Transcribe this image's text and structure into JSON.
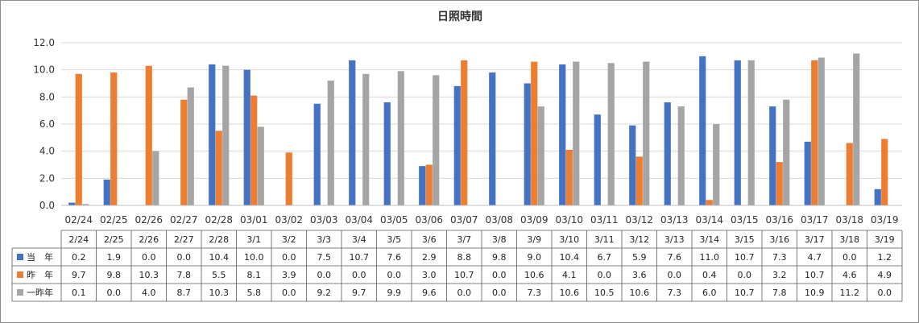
{
  "chart_data": {
    "type": "bar",
    "title": "日照時間",
    "ylim": [
      0,
      12
    ],
    "yticks": [
      "0.0",
      "2.0",
      "4.0",
      "6.0",
      "8.0",
      "10.0",
      "12.0"
    ],
    "categories": [
      "02/24",
      "02/25",
      "02/26",
      "02/27",
      "02/28",
      "03/01",
      "03/02",
      "03/03",
      "03/04",
      "03/05",
      "03/06",
      "03/07",
      "03/08",
      "03/09",
      "03/10",
      "03/11",
      "03/12",
      "03/13",
      "03/14",
      "03/15",
      "03/16",
      "03/17",
      "03/18",
      "03/19"
    ],
    "table_categories": [
      "2/24",
      "2/25",
      "2/26",
      "2/27",
      "2/28",
      "3/1",
      "3/2",
      "3/3",
      "3/4",
      "3/5",
      "3/6",
      "3/7",
      "3/8",
      "3/9",
      "3/10",
      "3/11",
      "3/12",
      "3/13",
      "3/14",
      "3/15",
      "3/16",
      "3/17",
      "3/18",
      "3/19"
    ],
    "series": [
      {
        "name": "当　年",
        "color": "#4472c4",
        "values": [
          0.2,
          1.9,
          0.0,
          0.0,
          10.4,
          10.0,
          0.0,
          7.5,
          10.7,
          7.6,
          2.9,
          8.8,
          9.8,
          9.0,
          10.4,
          6.7,
          5.9,
          7.6,
          11.0,
          10.7,
          7.3,
          4.7,
          0.0,
          1.2
        ],
        "labels": [
          "0.2",
          "1.9",
          "0.0",
          "0.0",
          "10.4",
          "10.0",
          "0.0",
          "7.5",
          "10.7",
          "7.6",
          "2.9",
          "8.8",
          "9.8",
          "9.0",
          "10.4",
          "6.7",
          "5.9",
          "7.6",
          "11.0",
          "10.7",
          "7.3",
          "4.7",
          "0.0",
          "1.2"
        ]
      },
      {
        "name": "昨　年",
        "color": "#ed7d31",
        "values": [
          9.7,
          9.8,
          10.3,
          7.8,
          5.5,
          8.1,
          3.9,
          0.0,
          0.0,
          0.0,
          3.0,
          10.7,
          0.0,
          10.6,
          4.1,
          0.0,
          3.6,
          0.0,
          0.4,
          0.0,
          3.2,
          10.7,
          4.6,
          4.9
        ],
        "labels": [
          "9.7",
          "9.8",
          "10.3",
          "7.8",
          "5.5",
          "8.1",
          "3.9",
          "0.0",
          "0.0",
          "0.0",
          "3.0",
          "10.7",
          "0.0",
          "10.6",
          "4.1",
          "0.0",
          "3.6",
          "0.0",
          "0.4",
          "0.0",
          "3.2",
          "10.7",
          "4.6",
          "4.9"
        ]
      },
      {
        "name": "一昨年",
        "color": "#a5a5a5",
        "values": [
          0.1,
          0.0,
          4.0,
          8.7,
          10.3,
          5.8,
          0.0,
          9.2,
          9.7,
          9.9,
          9.6,
          0.0,
          0.0,
          7.3,
          10.6,
          10.5,
          10.6,
          7.3,
          6.0,
          10.7,
          7.8,
          10.9,
          11.2,
          0.0
        ],
        "labels": [
          "0.1",
          "0.0",
          "4.0",
          "8.7",
          "10.3",
          "5.8",
          "0.0",
          "9.2",
          "9.7",
          "9.9",
          "9.6",
          "0.0",
          "0.0",
          "7.3",
          "10.6",
          "10.5",
          "10.6",
          "7.3",
          "6.0",
          "10.7",
          "7.8",
          "10.9",
          "11.2",
          "0.0"
        ]
      }
    ]
  }
}
